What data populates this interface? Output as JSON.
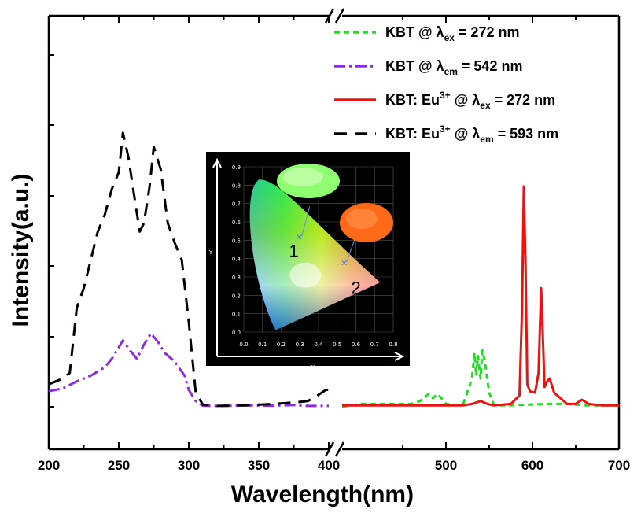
{
  "chart_data": {
    "type": "line",
    "xlabel": "Wavelength(nm)",
    "ylabel": "Intensity(a.u.)",
    "x_ticks_left": [
      "200",
      "250",
      "300",
      "350",
      "400"
    ],
    "x_ticks_right": [
      "500",
      "600",
      "700"
    ],
    "xlim_left": [
      200,
      400
    ],
    "xlim_right": [
      380,
      700
    ],
    "ylim": [
      0,
      1
    ],
    "series": [
      {
        "name": "KBT @ λex = 272 nm",
        "legend_main": "KBT @ λ",
        "legend_sub": "ex",
        "legend_tail": "= 272 nm",
        "color": "#22dd22",
        "style": "short-dash",
        "panel": "right",
        "x": [
          380,
          400,
          460,
          470,
          480,
          485,
          490,
          495,
          500,
          510,
          520,
          530,
          533,
          535,
          537,
          540,
          542,
          545,
          550,
          555,
          560,
          575,
          600,
          620,
          640,
          660,
          700
        ],
        "y": [
          0,
          0.01,
          0.01,
          0.02,
          0.045,
          0.03,
          0.045,
          0.03,
          0.01,
          0.005,
          0.01,
          0.1,
          0.19,
          0.11,
          0.18,
          0.1,
          0.2,
          0.16,
          0.05,
          0.01,
          0.005,
          0.005,
          0.008,
          0.01,
          0.01,
          0.005,
          0.005
        ]
      },
      {
        "name": "KBT @ λem = 542 nm",
        "legend_main": "KBT @ λ",
        "legend_sub": "em",
        "legend_tail": "= 542 nm",
        "color": "#8a2be2",
        "style": "dash-dot",
        "panel": "left",
        "x": [
          200,
          210,
          220,
          230,
          240,
          245,
          250,
          253,
          258,
          263,
          268,
          273,
          278,
          283,
          290,
          297,
          300,
          305,
          310,
          320,
          330,
          340,
          360,
          375,
          385,
          395,
          400
        ],
        "y": [
          0.055,
          0.065,
          0.09,
          0.11,
          0.14,
          0.17,
          0.21,
          0.235,
          0.2,
          0.17,
          0.22,
          0.26,
          0.23,
          0.19,
          0.16,
          0.11,
          0.06,
          0.02,
          0.004,
          0.003,
          0.004,
          0.005,
          0.004,
          0.006,
          0.003,
          0.003,
          0.003
        ]
      },
      {
        "name": "KBT: Eu3+ @ λex = 272 nm",
        "legend_main": "KBT: Eu",
        "legend_sup": "3+",
        "legend_mid": " @ λ",
        "legend_sub": "ex",
        "legend_tail": "= 272 nm",
        "color": "#ee1111",
        "style": "solid",
        "panel": "right",
        "x": [
          380,
          460,
          500,
          520,
          530,
          540,
          548,
          555,
          575,
          585,
          588,
          590,
          592,
          594,
          597,
          603,
          607,
          610,
          612,
          614,
          617,
          620,
          625,
          640,
          650,
          657,
          665,
          680,
          700
        ],
        "y": [
          0.005,
          0.005,
          0.005,
          0.005,
          0.01,
          0.02,
          0.01,
          0.005,
          0.01,
          0.04,
          0.35,
          0.78,
          0.5,
          0.08,
          0.055,
          0.05,
          0.12,
          0.42,
          0.25,
          0.07,
          0.09,
          0.1,
          0.05,
          0.01,
          0.01,
          0.025,
          0.01,
          0.005,
          0.005
        ]
      },
      {
        "name": "KBT: Eu3+ @ λem = 593 nm",
        "legend_main": "KBT: Eu",
        "legend_sup": "3+",
        "legend_mid": " @ λ",
        "legend_sub": "em",
        "legend_tail": "= 593 nm",
        "color": "#000000",
        "style": "long-dash",
        "panel": "left",
        "x": [
          200,
          210,
          215,
          220,
          225,
          230,
          235,
          240,
          245,
          250,
          253,
          257,
          260,
          265,
          268,
          272,
          275,
          280,
          285,
          290,
          295,
          300,
          305,
          310,
          320,
          340,
          360,
          375,
          385,
          392,
          398,
          400
        ],
        "y": [
          0.08,
          0.1,
          0.12,
          0.35,
          0.42,
          0.52,
          0.62,
          0.68,
          0.77,
          0.83,
          0.97,
          0.88,
          0.78,
          0.62,
          0.65,
          0.78,
          0.92,
          0.84,
          0.65,
          0.58,
          0.52,
          0.3,
          0.05,
          0.008,
          0.003,
          0.005,
          0.01,
          0.015,
          0.02,
          0.04,
          0.06,
          0.06
        ]
      }
    ],
    "inset": {
      "type": "cie-chromaticity",
      "x_label": "X",
      "y_label": "Y",
      "x_ticks": [
        "0.0",
        "0.1",
        "0.2",
        "0.3",
        "0.4",
        "0.5",
        "0.6",
        "0.7",
        "0.8"
      ],
      "y_ticks": [
        "0.0",
        "0.1",
        "0.2",
        "0.3",
        "0.4",
        "0.5",
        "0.6",
        "0.7",
        "0.8",
        "0.9"
      ],
      "points": [
        {
          "label": "1",
          "x": 0.31,
          "y": 0.52
        },
        {
          "label": "2",
          "x": 0.55,
          "y": 0.38
        }
      ]
    }
  }
}
